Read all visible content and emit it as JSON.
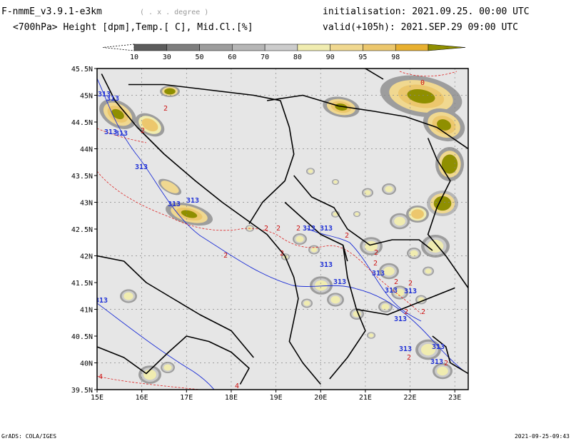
{
  "header": {
    "model": "F-nmmE_v3.9.1-e3km",
    "projection": "( . x . degree )",
    "variables": "<700hPa> Height [dpm],Temp.[ C], Mid.Cl.[%]",
    "init": "initialisation: 2021.09.25.  00:00 UTC",
    "valid": "valid(+105h): 2021.SEP.29 09:00 UTC"
  },
  "colorbar": {
    "labels": [
      "10",
      "30",
      "50",
      "60",
      "70",
      "80",
      "90",
      "95",
      "98"
    ],
    "colors": [
      "#5c5c5c",
      "#7e7e7e",
      "#9d9d9d",
      "#b6b6b6",
      "#cccccc",
      "#f0ecb0",
      "#f0d890",
      "#ecc76d",
      "#e8b030",
      "#8f8f00"
    ],
    "low_tri_color": "#ffffff"
  },
  "map": {
    "lat_ticks": [
      "45.5N",
      "45N",
      "44.5N",
      "44N",
      "43.5N",
      "43N",
      "42.5N",
      "42N",
      "41.5N",
      "41N",
      "40.5N",
      "40N",
      "39.5N"
    ],
    "lon_ticks": [
      "15E",
      "16E",
      "17E",
      "18E",
      "19E",
      "20E",
      "21E",
      "22E",
      "23E"
    ],
    "background_color": "#e6e6e6",
    "height_label": "313",
    "temp_labels": [
      "0",
      "2",
      "4"
    ]
  },
  "footer": {
    "left": "GrADS: COLA/IGES",
    "right": "2021-09-25-09:43"
  }
}
